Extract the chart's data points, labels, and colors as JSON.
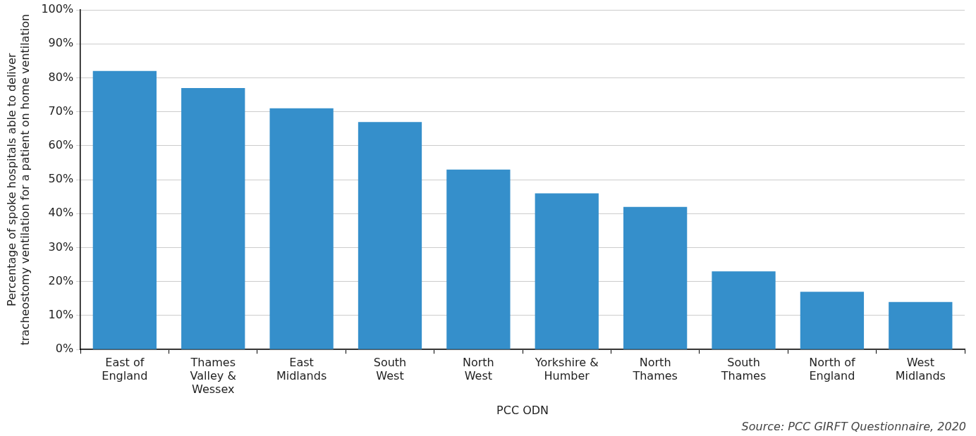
{
  "chart_data": {
    "type": "bar",
    "categories": [
      "East of England",
      "Thames Valley & Wessex",
      "East Midlands",
      "South West",
      "North West",
      "Yorkshire & Humber",
      "North Thames",
      "South Thames",
      "North of England",
      "West Midlands"
    ],
    "values": [
      82,
      77,
      71,
      67,
      53,
      46,
      42,
      23,
      17,
      14
    ],
    "color": "#358fcb",
    "xlabel": "PCC ODN",
    "ylabel": "Percentage of spoke hospitals able to deliver tracheostomy ventilation for a patient on home ventilation",
    "ylim": [
      0,
      100
    ],
    "yticks": [
      {
        "value": 0,
        "label": "0%"
      },
      {
        "value": 10,
        "label": "10%"
      },
      {
        "value": 20,
        "label": "20%"
      },
      {
        "value": 30,
        "label": "30%"
      },
      {
        "value": 40,
        "label": "40%"
      },
      {
        "value": 50,
        "label": "50%"
      },
      {
        "value": 60,
        "label": "60%"
      },
      {
        "value": 70,
        "label": "70%"
      },
      {
        "value": 80,
        "label": "80%"
      },
      {
        "value": 90,
        "label": "90%"
      },
      {
        "value": 100,
        "label": "100%"
      }
    ],
    "grid": "y",
    "legend": false,
    "annotations": [
      "Source: PCC GIRFT Questionnaire, 2020"
    ]
  }
}
